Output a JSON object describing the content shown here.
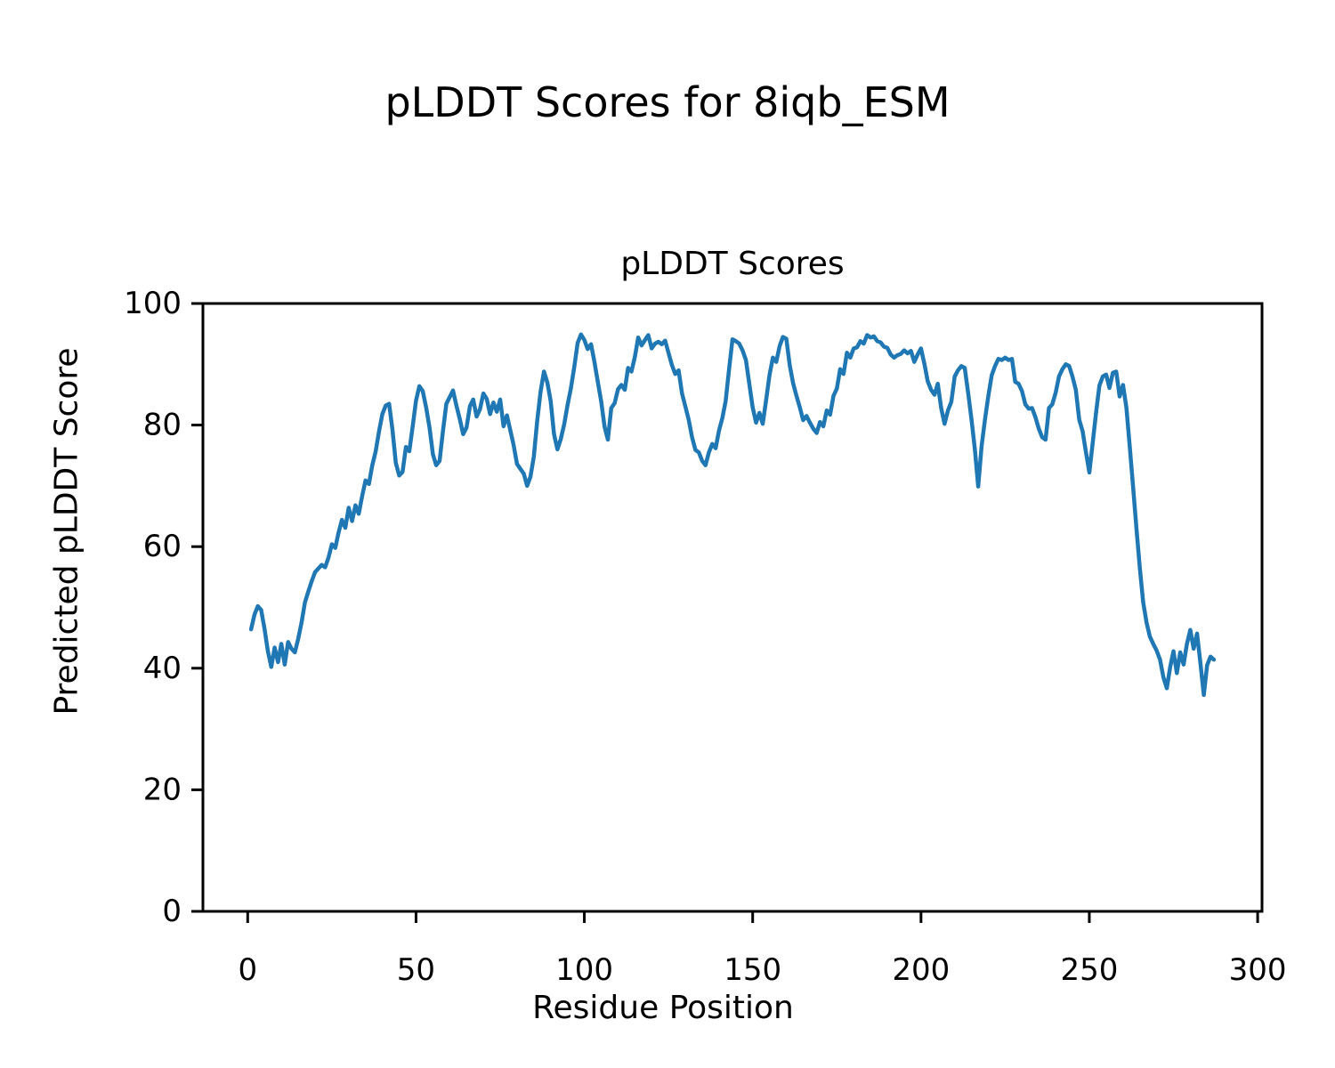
{
  "figure": {
    "suptitle": "pLDDT Scores for 8iqb_ESM"
  },
  "chart_data": {
    "type": "line",
    "title": "pLDDT Scores",
    "xlabel": "Residue Position",
    "ylabel": "Predicted pLDDT Score",
    "xlim": [
      -13.3,
      301.3
    ],
    "ylim": [
      0,
      100
    ],
    "xticks": [
      0,
      50,
      100,
      150,
      200,
      250,
      300
    ],
    "yticks": [
      0,
      20,
      40,
      60,
      80,
      100
    ],
    "grid": false,
    "legend": "none",
    "line_color": "#1f77b4",
    "line_width": 4.5,
    "series": [
      {
        "name": "pLDDT",
        "x_start": 1,
        "values": [
          46.4,
          48.8,
          50.2,
          49.6,
          46.5,
          42.8,
          40.2,
          43.4,
          41.0,
          44.0,
          40.6,
          44.3,
          43.2,
          42.6,
          44.8,
          47.5,
          50.8,
          52.6,
          54.3,
          55.8,
          56.4,
          57.0,
          56.6,
          58.2,
          60.4,
          59.8,
          62.3,
          64.4,
          63.1,
          66.4,
          64.2,
          66.8,
          65.4,
          68.3,
          70.9,
          70.3,
          73.4,
          75.6,
          78.9,
          81.8,
          83.2,
          83.5,
          79.2,
          73.8,
          71.7,
          72.3,
          76.4,
          75.7,
          79.8,
          84.0,
          86.4,
          85.6,
          82.9,
          79.6,
          75.2,
          73.4,
          74.1,
          79.0,
          83.5,
          84.6,
          85.7,
          83.2,
          81.0,
          78.5,
          79.6,
          83.1,
          84.2,
          81.4,
          82.6,
          85.2,
          84.3,
          81.8,
          83.7,
          82.2,
          84.2,
          79.8,
          81.6,
          79.2,
          76.7,
          73.6,
          72.8,
          72.0,
          70.0,
          71.5,
          74.8,
          80.7,
          85.5,
          88.8,
          87.0,
          84.0,
          78.5,
          76.0,
          77.7,
          80.1,
          83.3,
          86.0,
          89.5,
          93.5,
          94.9,
          94.0,
          92.5,
          93.3,
          90.4,
          87.1,
          83.9,
          79.7,
          77.6,
          82.8,
          83.6,
          85.9,
          86.6,
          85.8,
          89.4,
          88.8,
          91.2,
          94.4,
          93.1,
          94.0,
          94.8,
          92.6,
          93.4,
          93.7,
          93.3,
          93.9,
          91.9,
          89.9,
          88.4,
          89.0,
          85.2,
          83.1,
          80.9,
          78.0,
          75.9,
          75.5,
          74.1,
          73.4,
          75.5,
          76.9,
          76.2,
          79.1,
          81.2,
          84.0,
          89.2,
          94.1,
          93.8,
          93.4,
          92.3,
          90.7,
          86.8,
          82.9,
          80.4,
          82.0,
          80.2,
          84.1,
          88.2,
          91.1,
          90.4,
          93.0,
          94.5,
          94.2,
          89.9,
          86.9,
          84.8,
          82.9,
          80.8,
          81.5,
          80.4,
          79.4,
          78.7,
          80.5,
          79.8,
          82.4,
          81.7,
          84.8,
          86.0,
          89.2,
          88.4,
          91.9,
          91.1,
          92.6,
          92.8,
          93.8,
          93.4,
          94.8,
          94.4,
          94.6,
          93.8,
          93.6,
          92.9,
          92.7,
          91.6,
          91.1,
          91.5,
          91.7,
          92.3,
          91.8,
          92.2,
          90.4,
          91.6,
          92.6,
          90.1,
          87.2,
          85.8,
          85.0,
          86.8,
          82.8,
          80.2,
          82.4,
          83.8,
          88.0,
          89.0,
          89.7,
          89.4,
          85.3,
          80.9,
          76.1,
          69.9,
          76.5,
          80.9,
          84.8,
          88.2,
          89.7,
          90.9,
          90.7,
          91.1,
          90.7,
          90.9,
          87.1,
          86.8,
          85.6,
          83.4,
          82.7,
          82.8,
          81.3,
          79.4,
          78.0,
          77.6,
          82.8,
          83.4,
          85.3,
          88.0,
          89.2,
          90.0,
          89.7,
          88.0,
          85.8,
          80.9,
          79.0,
          75.5,
          72.2,
          77.0,
          82.0,
          86.5,
          88.0,
          88.3,
          86.1,
          88.6,
          88.8,
          84.7,
          86.6,
          82.9,
          76.6,
          69.9,
          63.0,
          56.5,
          50.8,
          47.5,
          45.2,
          44.0,
          42.9,
          41.4,
          38.5,
          36.7,
          40.1,
          42.8,
          39.2,
          42.6,
          40.6,
          44.0,
          46.3,
          43.2,
          45.7,
          40.8,
          35.6,
          40.5,
          41.9,
          41.4
        ]
      }
    ]
  }
}
